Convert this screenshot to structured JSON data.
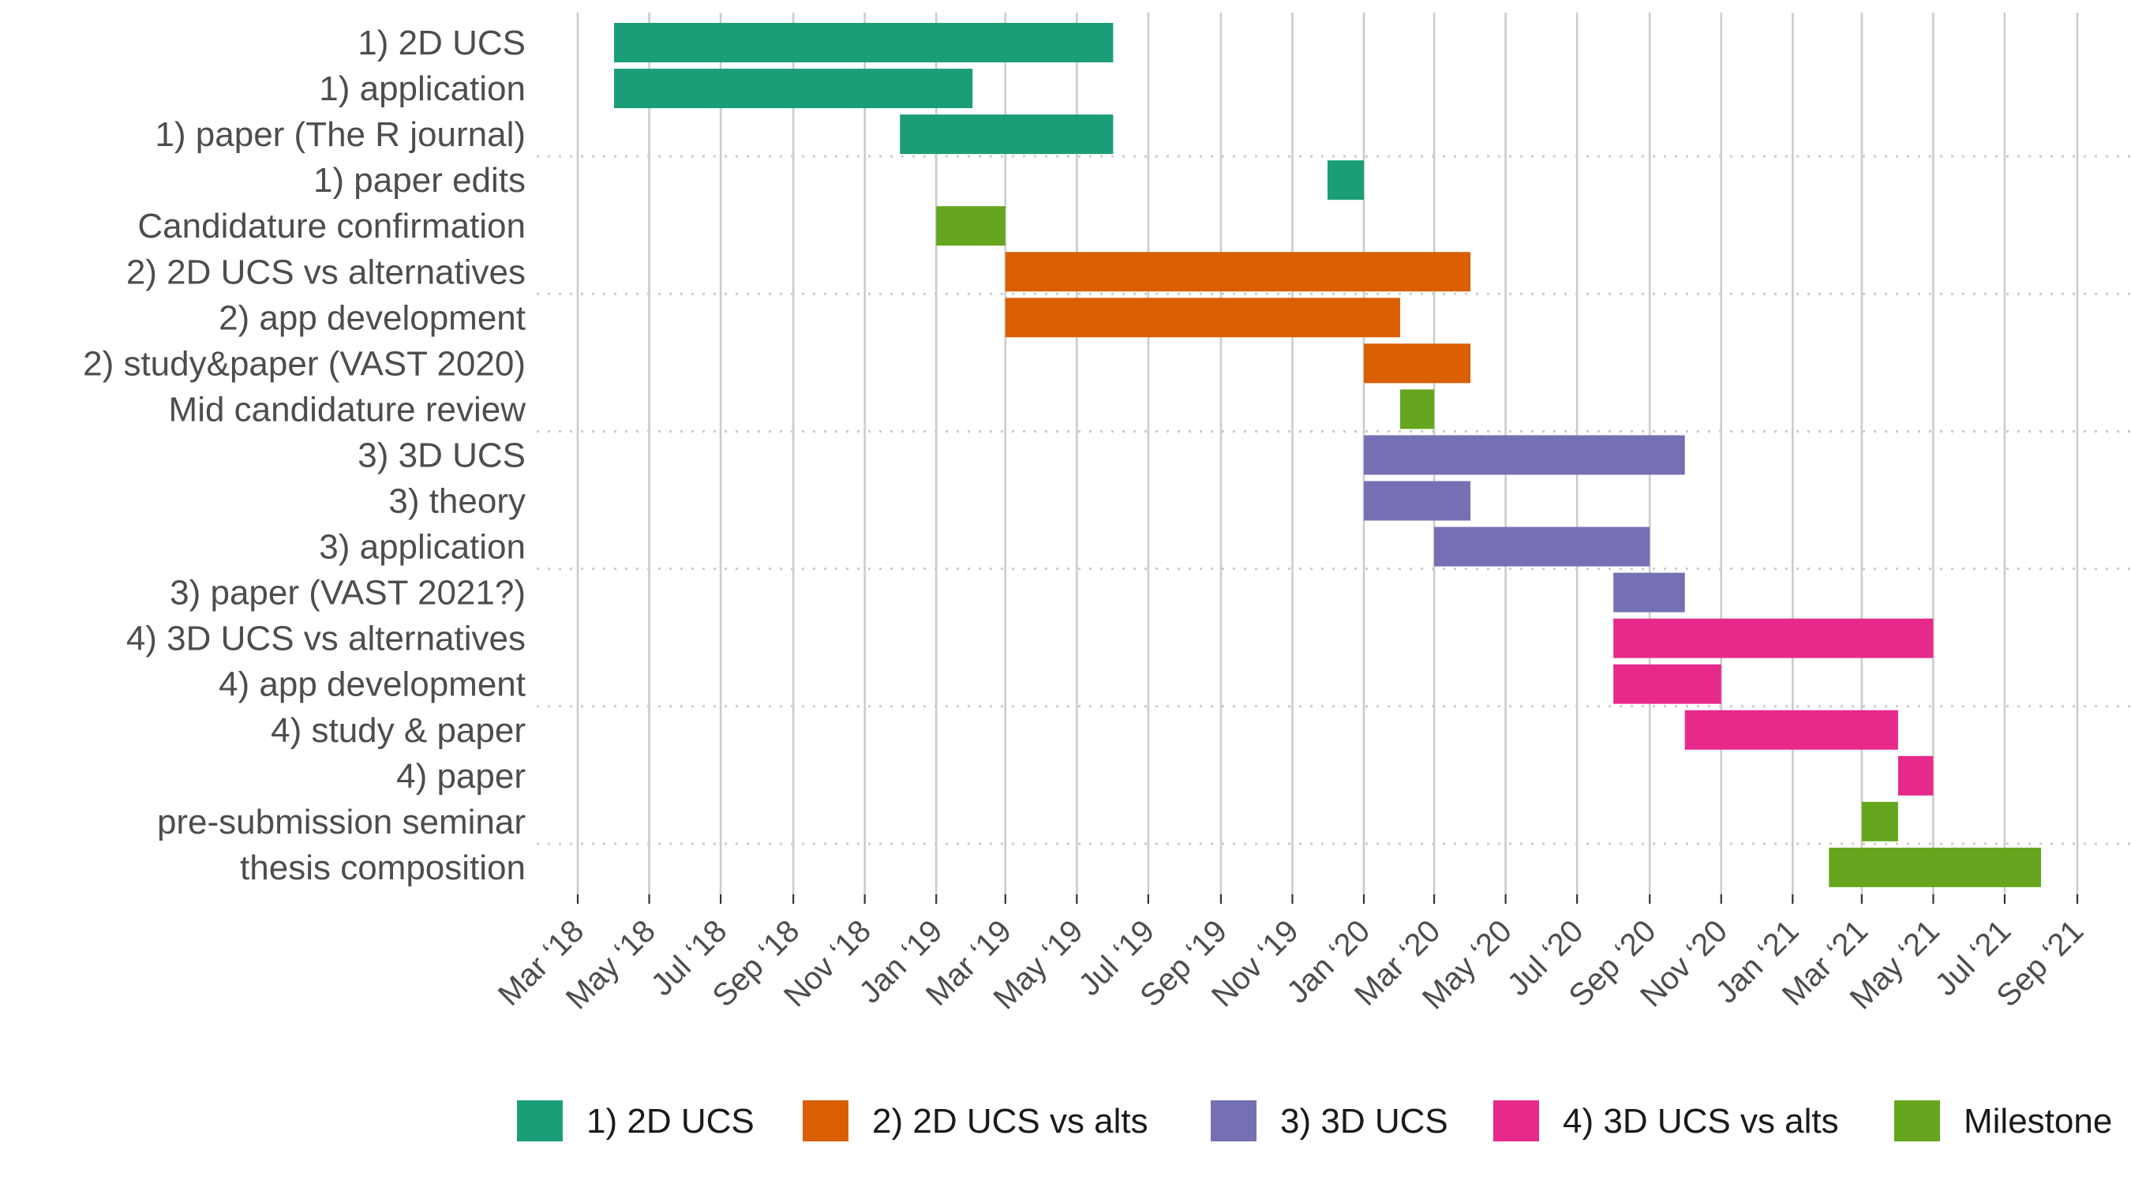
{
  "chart_data": {
    "type": "gantt",
    "colors": {
      "1) 2D UCS": "#1b9e77",
      "2) 2D UCS vs alts": "#d95f02",
      "3) 3D UCS": "#7570b3",
      "4) 3D UCS vs alts": "#e7298a",
      "Milestone": "#66a61e"
    },
    "legend": {
      "position": "bottom",
      "entries": [
        "1) 2D UCS",
        "2) 2D UCS vs alts",
        "3) 3D UCS",
        "4) 3D UCS vs alts",
        "Milestone"
      ]
    },
    "x_axis": {
      "type": "date",
      "range": [
        "2018-03-01",
        "2021-09-15"
      ],
      "ticks": [
        {
          "date": "2018-03-01",
          "label": "Mar ‘18"
        },
        {
          "date": "2018-05-01",
          "label": "May ‘18"
        },
        {
          "date": "2018-07-01",
          "label": "Jul ‘18"
        },
        {
          "date": "2018-09-01",
          "label": "Sep ‘18"
        },
        {
          "date": "2018-11-01",
          "label": "Nov ‘18"
        },
        {
          "date": "2019-01-01",
          "label": "Jan ‘19"
        },
        {
          "date": "2019-03-01",
          "label": "Mar ‘19"
        },
        {
          "date": "2019-05-01",
          "label": "May ‘19"
        },
        {
          "date": "2019-07-01",
          "label": "Jul ‘19"
        },
        {
          "date": "2019-09-01",
          "label": "Sep ‘19"
        },
        {
          "date": "2019-11-01",
          "label": "Nov ‘19"
        },
        {
          "date": "2020-01-01",
          "label": "Jan ‘20"
        },
        {
          "date": "2020-03-01",
          "label": "Mar ‘20"
        },
        {
          "date": "2020-05-01",
          "label": "May ‘20"
        },
        {
          "date": "2020-07-01",
          "label": "Jul ‘20"
        },
        {
          "date": "2020-09-01",
          "label": "Sep ‘20"
        },
        {
          "date": "2020-11-01",
          "label": "Nov ‘20"
        },
        {
          "date": "2021-01-01",
          "label": "Jan ‘21"
        },
        {
          "date": "2021-03-01",
          "label": "Mar ‘21"
        },
        {
          "date": "2021-05-01",
          "label": "May ‘21"
        },
        {
          "date": "2021-07-01",
          "label": "Jul ‘21"
        },
        {
          "date": "2021-09-01",
          "label": "Sep ‘21"
        }
      ]
    },
    "tasks": [
      {
        "label": "1) 2D UCS",
        "group": "1) 2D UCS",
        "start": "2018-04-01",
        "end": "2019-06-01"
      },
      {
        "label": "1) application",
        "group": "1) 2D UCS",
        "start": "2018-04-01",
        "end": "2019-02-01"
      },
      {
        "label": "1) paper (The R journal)",
        "group": "1) 2D UCS",
        "start": "2018-12-01",
        "end": "2019-06-01"
      },
      {
        "label": "1) paper edits",
        "group": "1) 2D UCS",
        "start": "2019-12-01",
        "end": "2020-01-01"
      },
      {
        "label": "Candidature confirmation",
        "group": "Milestone",
        "start": "2019-01-01",
        "end": "2019-03-01"
      },
      {
        "label": "2) 2D UCS vs alternatives",
        "group": "2) 2D UCS vs alts",
        "start": "2019-03-01",
        "end": "2020-04-01"
      },
      {
        "label": "2) app development",
        "group": "2) 2D UCS vs alts",
        "start": "2019-03-01",
        "end": "2020-02-01"
      },
      {
        "label": "2) study&paper (VAST 2020)",
        "group": "2) 2D UCS vs alts",
        "start": "2020-01-01",
        "end": "2020-04-01"
      },
      {
        "label": "Mid candidature review",
        "group": "Milestone",
        "start": "2020-02-01",
        "end": "2020-03-01"
      },
      {
        "label": "3) 3D UCS",
        "group": "3) 3D UCS",
        "start": "2020-01-01",
        "end": "2020-10-01"
      },
      {
        "label": "3) theory",
        "group": "3) 3D UCS",
        "start": "2020-01-01",
        "end": "2020-04-01"
      },
      {
        "label": "3) application",
        "group": "3) 3D UCS",
        "start": "2020-03-01",
        "end": "2020-09-01"
      },
      {
        "label": "3) paper (VAST 2021?)",
        "group": "3) 3D UCS",
        "start": "2020-08-01",
        "end": "2020-10-01"
      },
      {
        "label": "4) 3D UCS vs alternatives",
        "group": "4) 3D UCS vs alts",
        "start": "2020-08-01",
        "end": "2021-05-01"
      },
      {
        "label": "4) app development",
        "group": "4) 3D UCS vs alts",
        "start": "2020-08-01",
        "end": "2020-11-01"
      },
      {
        "label": "4) study & paper",
        "group": "4) 3D UCS vs alts",
        "start": "2020-10-01",
        "end": "2021-04-01"
      },
      {
        "label": "4) paper ",
        "group": "4) 3D UCS vs alts",
        "start": "2021-04-01",
        "end": "2021-05-01"
      },
      {
        "label": "pre-submission seminar",
        "group": "Milestone",
        "start": "2021-03-01",
        "end": "2021-04-01"
      },
      {
        "label": "thesis composition",
        "group": "Milestone",
        "start": "2021-02-01",
        "end": "2021-08-01"
      }
    ]
  }
}
